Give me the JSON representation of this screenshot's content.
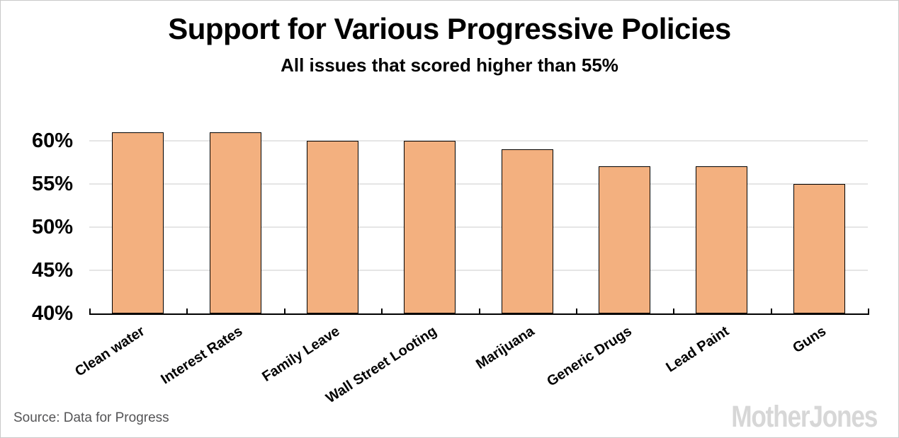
{
  "header": {
    "title": "Support for Various Progressive Policies",
    "subtitle": "All issues that scored higher than 55%"
  },
  "footer": {
    "source": "Source: Data for Progress",
    "logo": "MotherJones"
  },
  "chart_data": {
    "type": "bar",
    "title": "Support for Various Progressive Policies",
    "subtitle": "All issues that scored higher than 55%",
    "categories": [
      "Clean water",
      "Interest Rates",
      "Family Leave",
      "Wall Street Looting",
      "Marijuana",
      "Generic Drugs",
      "Lead Paint",
      "Guns"
    ],
    "values": [
      61,
      61,
      60,
      60,
      59,
      57,
      57,
      55
    ],
    "xlabel": "",
    "ylabel": "",
    "ylim": [
      40,
      62
    ],
    "yticks": [
      40,
      45,
      50,
      55,
      60
    ],
    "ytick_labels": [
      "40%",
      "45%",
      "50%",
      "55%",
      "60%"
    ],
    "grid": true,
    "legend": false,
    "bar_color": "#F3B07F",
    "bar_border_color": "#000000",
    "gridline_color": "#E5E5E5",
    "source": "Source: Data for Progress",
    "branding": "MotherJones"
  }
}
